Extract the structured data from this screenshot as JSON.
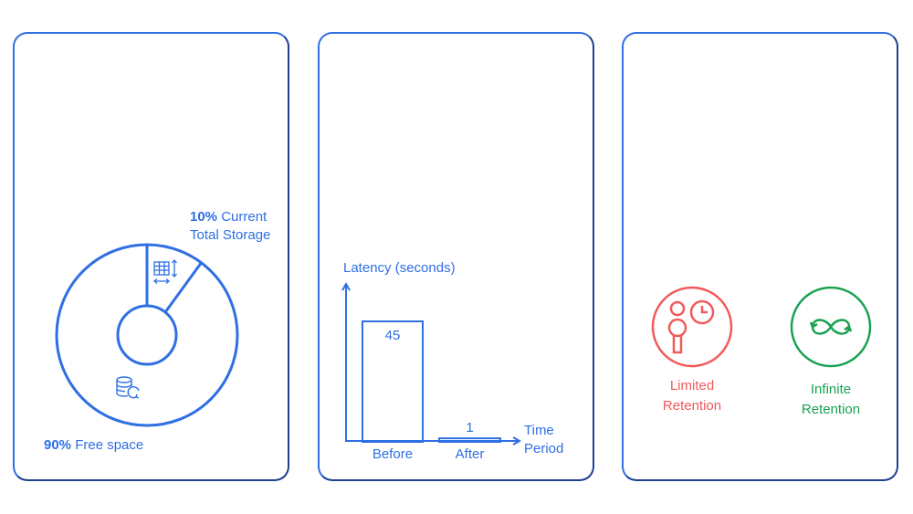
{
  "storage": {
    "current_pct": "10%",
    "current_label_line1": "Current",
    "current_label_line2": "Total Storage",
    "free_pct": "90%",
    "free_label": "Free space",
    "icons": [
      "table-resize-icon",
      "database-refresh-icon"
    ]
  },
  "chart_data": {
    "type": "bar",
    "categories": [
      "Before",
      "After"
    ],
    "values": [
      45,
      1
    ],
    "data_labels": [
      "45",
      "1"
    ],
    "ylabel": "Latency (seconds)",
    "xlabel_line1": "Time",
    "xlabel_line2": "Period",
    "ylim": [
      0,
      50
    ],
    "grid": false
  },
  "retention": {
    "limited_line1": "Limited",
    "limited_line2": "Retention",
    "infinite_line1": "Infinite",
    "infinite_line2": "Retention",
    "colors": {
      "limited": "#f05a5a",
      "infinite": "#1aa152",
      "accent": "#2f6fe4"
    }
  }
}
